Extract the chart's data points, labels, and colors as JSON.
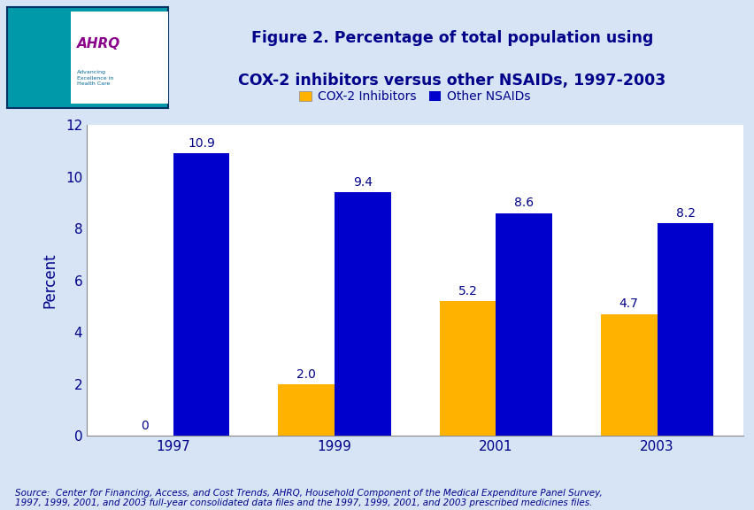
{
  "title_line1": "Figure 2. Percentage of total population using",
  "title_line2": "COX-2 inhibitors versus other NSAIDs, 1997-2003",
  "years": [
    "1997",
    "1999",
    "2001",
    "2003"
  ],
  "cox2_values": [
    0,
    2.0,
    5.2,
    4.7
  ],
  "nsaid_values": [
    10.9,
    9.4,
    8.6,
    8.2
  ],
  "cox2_color": "#FFB300",
  "nsaid_color": "#0000CC",
  "ylabel": "Percent",
  "ylim": [
    0,
    12
  ],
  "yticks": [
    0,
    2,
    4,
    6,
    8,
    10,
    12
  ],
  "legend_cox2": "COX-2 Inhibitors",
  "legend_nsaid": "Other NSAIDs",
  "source_text": "Source:  Center for Financing, Access, and Cost Trends, AHRQ, Household Component of the Medical Expenditure Panel Survey,\n1997, 1999, 2001, and 2003 full-year consolidated data files and the 1997, 1999, 2001, and 2003 prescribed medicines files.",
  "bg_color": "#D6E4F5",
  "header_bg": "#FFFFFF",
  "plot_area_bg": "#FFFFFF",
  "bar_label_color": "#00008B",
  "title_color": "#00008B",
  "axis_label_color": "#00008B",
  "tick_label_color": "#00008B",
  "source_color": "#00008B",
  "bar_width": 0.35,
  "header_line_color": "#1A3A8C",
  "header_line_color2": "#00AACC",
  "logo_bg": "#0099AA",
  "logo_border_color": "#003366"
}
